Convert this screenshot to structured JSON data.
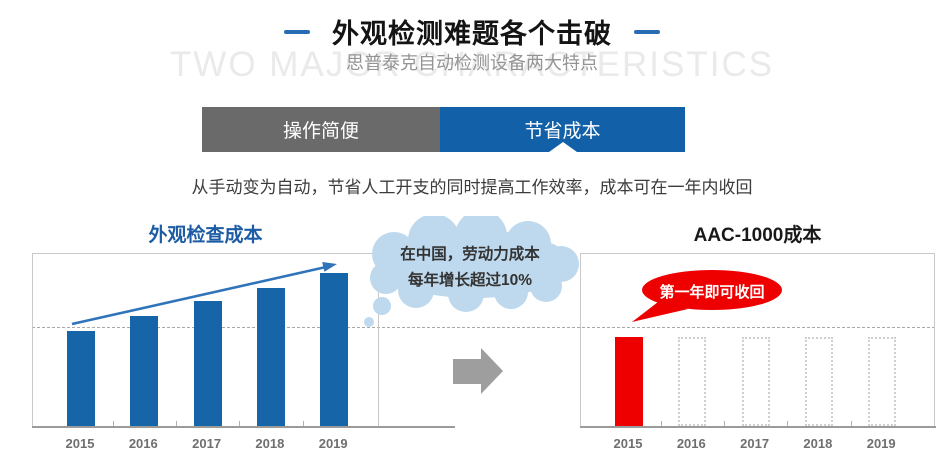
{
  "header": {
    "title": "外观检测难题各个击破",
    "subtitle": "思普泰克自动检测设备两大特点",
    "watermark": "TWO MAJOR CHARACTERISTICS"
  },
  "tabs": [
    {
      "label": "操作简便",
      "active": false
    },
    {
      "label": "节省成本",
      "active": true
    }
  ],
  "description": "从手动变为自动，节省人工开支的同时提高工作效率，成本可在一年内收回",
  "callouts": {
    "cloud": {
      "line1": "在中国，劳动力成本",
      "line2": "每年增长超过10%"
    },
    "bubble": {
      "text": "第一年即可收回"
    }
  },
  "chart_data": [
    {
      "type": "bar",
      "title": "外观检查成本",
      "categories": [
        "2015",
        "2016",
        "2017",
        "2018",
        "2019"
      ],
      "values": [
        95,
        110,
        125,
        138,
        153
      ],
      "units": "relative px height (no value axis shown in source)",
      "bar_color": "#1565a8",
      "trend_arrow": true,
      "gridline": "single dashed horizontal reference line",
      "legend": "none"
    },
    {
      "type": "bar",
      "title": "AAC-1000成本",
      "categories": [
        "2015",
        "2016",
        "2017",
        "2018",
        "2019"
      ],
      "values": [
        89,
        89,
        89,
        89,
        89
      ],
      "filled": [
        true,
        false,
        false,
        false,
        false
      ],
      "units": "relative px height (no value axis shown in source)",
      "bar_color": "#ee0000",
      "placeholder_style": "dotted outline (cost only in first year)",
      "gridline": "single dashed horizontal reference line",
      "legend": "none"
    }
  ],
  "colors": {
    "accent_blue": "#1565a8",
    "tab_gray": "#6a6a6a",
    "tab_blue": "#1160a8",
    "title_dash_blue": "#2a6cb4",
    "bar_red": "#ee0000",
    "cloud_blue": "#bed9ed",
    "arrow_gray": "#9e9e9e",
    "watermark_gray": "#eaeaea"
  }
}
